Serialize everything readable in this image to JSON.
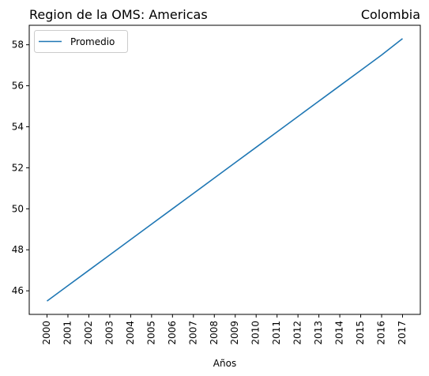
{
  "chart_data": {
    "type": "line",
    "title_left": "Region de la OMS: Americas",
    "title_right": "Colombia",
    "xlabel": "Años",
    "ylabel": "",
    "x": [
      2000,
      2001,
      2002,
      2003,
      2004,
      2005,
      2006,
      2007,
      2008,
      2009,
      2010,
      2011,
      2012,
      2013,
      2014,
      2015,
      2016,
      2017
    ],
    "series": [
      {
        "name": "Promedio",
        "color": "#1f77b4",
        "values": [
          45.5,
          46.25,
          47.0,
          47.75,
          48.5,
          49.25,
          50.0,
          50.75,
          51.5,
          52.25,
          53.0,
          53.75,
          54.5,
          55.25,
          56.0,
          56.75,
          57.5,
          58.3
        ]
      }
    ],
    "yticks": [
      46,
      48,
      50,
      52,
      54,
      56,
      58
    ],
    "ylim": [
      44.85,
      58.95
    ],
    "legend_position": "upper-left",
    "grid": false
  }
}
